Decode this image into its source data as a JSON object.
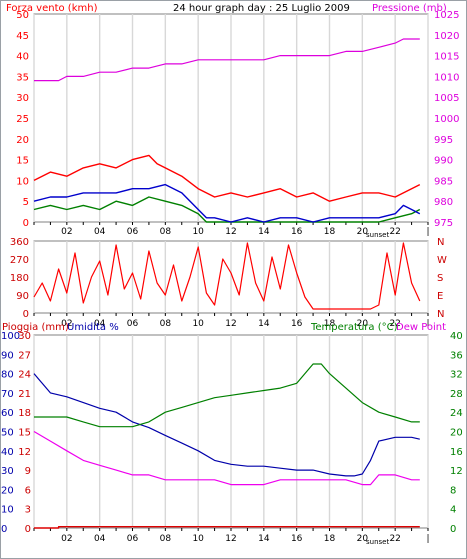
{
  "chart_data": [
    {
      "type": "line",
      "title": "24 hour graph day : 25 Luglio 2009",
      "ylabel_left": "Forza vento (kmh)",
      "ylabel_right": "Pressione (mb)",
      "ylim_left": [
        0,
        50
      ],
      "yticks_left": [
        "0",
        "5",
        "10",
        "15",
        "20",
        "25",
        "30",
        "35",
        "40",
        "45",
        "50"
      ],
      "ylim_right": [
        975,
        1025
      ],
      "yticks_right": [
        "975",
        "980",
        "985",
        "990",
        "995",
        "1000",
        "1005",
        "1010",
        "1015",
        "1020",
        "1025"
      ],
      "xticks": [
        "02",
        "04",
        "06",
        "08",
        "10",
        "12",
        "14",
        "16",
        "18",
        "20",
        "22"
      ],
      "grid": true,
      "colors": {
        "pressure": "#dd00dd",
        "gust": "#ff0000",
        "avg": "#008000",
        "dew": "#0000cc"
      },
      "series": [
        {
          "name": "Pressione",
          "axis": "right",
          "x": [
            0,
            1.5,
            2,
            3,
            4,
            5,
            6,
            7,
            8,
            9,
            10,
            11,
            12,
            13,
            14,
            15,
            16,
            17,
            18,
            19,
            20,
            21,
            22,
            22.5,
            23.5
          ],
          "values": [
            1009,
            1009,
            1010,
            1010,
            1011,
            1011,
            1012,
            1012,
            1013,
            1013,
            1014,
            1014,
            1014,
            1014,
            1014,
            1015,
            1015,
            1015,
            1015,
            1016,
            1016,
            1017,
            1018,
            1019,
            1019
          ]
        },
        {
          "axis": "left",
          "x": [
            0,
            1,
            2,
            3,
            4,
            5,
            6,
            7,
            7.5,
            8,
            9,
            10,
            11,
            12,
            13,
            14,
            15,
            16,
            17,
            18,
            19,
            20,
            21,
            22,
            23,
            23.5
          ],
          "values": [
            10,
            12,
            11,
            13,
            14,
            13,
            15,
            16,
            14,
            13,
            11,
            8,
            6,
            7,
            6,
            7,
            8,
            6,
            7,
            5,
            6,
            7,
            7,
            6,
            8,
            9
          ]
        },
        {
          "axis": "left",
          "x": [
            0,
            1,
            2,
            3,
            4,
            5,
            6,
            7,
            8,
            9,
            10,
            10.5,
            11,
            12,
            13,
            14,
            15,
            16,
            17,
            18,
            19,
            20,
            21,
            22,
            23,
            23.5
          ],
          "values": [
            3,
            4,
            3,
            4,
            3,
            5,
            4,
            6,
            5,
            4,
            2,
            0,
            0,
            0,
            0,
            0,
            0,
            0,
            0,
            0,
            0,
            0,
            0,
            1,
            2,
            3
          ]
        },
        {
          "axis": "left",
          "x": [
            0,
            1,
            2,
            3,
            4,
            5,
            6,
            7,
            8,
            9,
            10,
            10.5,
            11,
            12,
            13,
            14,
            15,
            16,
            17,
            18,
            19,
            20,
            21,
            22,
            22.5,
            23,
            23.5
          ],
          "values": [
            5,
            6,
            6,
            7,
            7,
            7,
            8,
            8,
            9,
            7,
            3,
            1,
            1,
            0,
            1,
            0,
            1,
            1,
            0,
            1,
            1,
            1,
            1,
            2,
            4,
            3,
            2
          ]
        }
      ],
      "sunset": "sunset"
    },
    {
      "type": "line",
      "ylim": [
        0,
        360
      ],
      "yticks": [
        "0",
        "90",
        "180",
        "270",
        "360"
      ],
      "yticks_right": [
        "N",
        "E",
        "S",
        "W",
        "N"
      ],
      "xticks": [
        "02",
        "04",
        "06",
        "08",
        "10",
        "12",
        "14",
        "16",
        "18",
        "20",
        "22"
      ],
      "series": [
        {
          "axis": "left",
          "x": [
            0,
            0.5,
            1,
            1.5,
            2,
            2.5,
            3,
            3.5,
            4,
            4.5,
            5,
            5.5,
            6,
            6.5,
            7,
            7.5,
            8,
            8.5,
            9,
            9.5,
            10,
            10.5,
            11,
            11.5,
            12,
            12.5,
            13,
            13.5,
            14,
            14.5,
            15,
            15.5,
            16,
            16.5,
            17,
            17.5,
            18,
            18.5,
            19,
            19.5,
            20,
            20.5,
            21,
            21.5,
            22,
            22.5,
            23,
            23.5
          ],
          "values": [
            80,
            150,
            60,
            220,
            100,
            300,
            50,
            180,
            260,
            90,
            340,
            120,
            200,
            70,
            310,
            150,
            90,
            240,
            60,
            180,
            330,
            100,
            40,
            270,
            200,
            90,
            350,
            150,
            60,
            280,
            120,
            340,
            200,
            80,
            20,
            20,
            20,
            20,
            20,
            20,
            20,
            20,
            40,
            300,
            90,
            350,
            150,
            60
          ]
        }
      ],
      "color": "#ff0000",
      "sunset": "sunset"
    },
    {
      "type": "line",
      "ylabel_left": "Pioggia (mm)",
      "ylabel_left2": "Umidita %",
      "ylabel_right": "Temperatura (°C)",
      "ylabel_right2": "Dew Point",
      "ylim_rain": [
        0,
        30
      ],
      "yticks_rain": [
        "0",
        "3",
        "6",
        "9",
        "12",
        "15",
        "18",
        "21",
        "24",
        "27",
        "30"
      ],
      "ylim_hum": [
        0,
        100
      ],
      "yticks_hum": [
        "0",
        "10",
        "20",
        "30",
        "40",
        "50",
        "60",
        "70",
        "80",
        "90",
        "100"
      ],
      "ylim_temp": [
        0,
        40
      ],
      "yticks_temp": [
        "0",
        "4",
        "8",
        "12",
        "16",
        "20",
        "24",
        "28",
        "32",
        "36",
        "40"
      ],
      "xticks": [
        "02",
        "04",
        "06",
        "08",
        "10",
        "12",
        "14",
        "16",
        "18",
        "20",
        "22"
      ],
      "colors": {
        "temp": "#008000",
        "hum": "#0000aa",
        "dew": "#ee00ee",
        "rain": "#dd0000"
      },
      "series": [
        {
          "axis": "temp",
          "x": [
            0,
            1,
            2,
            3,
            4,
            5,
            6,
            7,
            8,
            9,
            10,
            11,
            12,
            13,
            14,
            15,
            16,
            16.5,
            17,
            17.5,
            18,
            19,
            20,
            21,
            22,
            23,
            23.5
          ],
          "values": [
            23,
            23,
            23,
            22,
            21,
            21,
            21,
            22,
            24,
            25,
            26,
            27,
            27.5,
            28,
            28.5,
            29,
            30,
            32,
            34,
            34,
            32,
            29,
            26,
            24,
            23,
            22,
            22
          ]
        },
        {
          "axis": "hum",
          "x": [
            0,
            0.5,
            1,
            2,
            3,
            4,
            5,
            6,
            7,
            8,
            9,
            10,
            11,
            12,
            13,
            14,
            15,
            16,
            17,
            18,
            19,
            19.5,
            20,
            20.5,
            21,
            22,
            23,
            23.5
          ],
          "values": [
            80,
            75,
            70,
            68,
            65,
            62,
            60,
            55,
            52,
            48,
            44,
            40,
            35,
            33,
            32,
            32,
            31,
            30,
            30,
            28,
            27,
            27,
            28,
            35,
            45,
            47,
            47,
            46
          ]
        },
        {
          "axis": "temp",
          "x": [
            0,
            1,
            2,
            3,
            4,
            5,
            6,
            7,
            8,
            9,
            10,
            11,
            12,
            13,
            14,
            15,
            16,
            17,
            18,
            19,
            20,
            20.5,
            21,
            22,
            23,
            23.5
          ],
          "values": [
            20,
            18,
            16,
            14,
            13,
            12,
            11,
            11,
            10,
            10,
            10,
            10,
            9,
            9,
            9,
            10,
            10,
            10,
            10,
            10,
            9,
            9,
            11,
            11,
            10,
            10
          ]
        },
        {
          "axis": "rain",
          "x": [
            0,
            1.5,
            1.5,
            23.5
          ],
          "values": [
            0,
            0,
            0.2,
            0.2
          ]
        }
      ],
      "sunset": "sunset"
    }
  ]
}
